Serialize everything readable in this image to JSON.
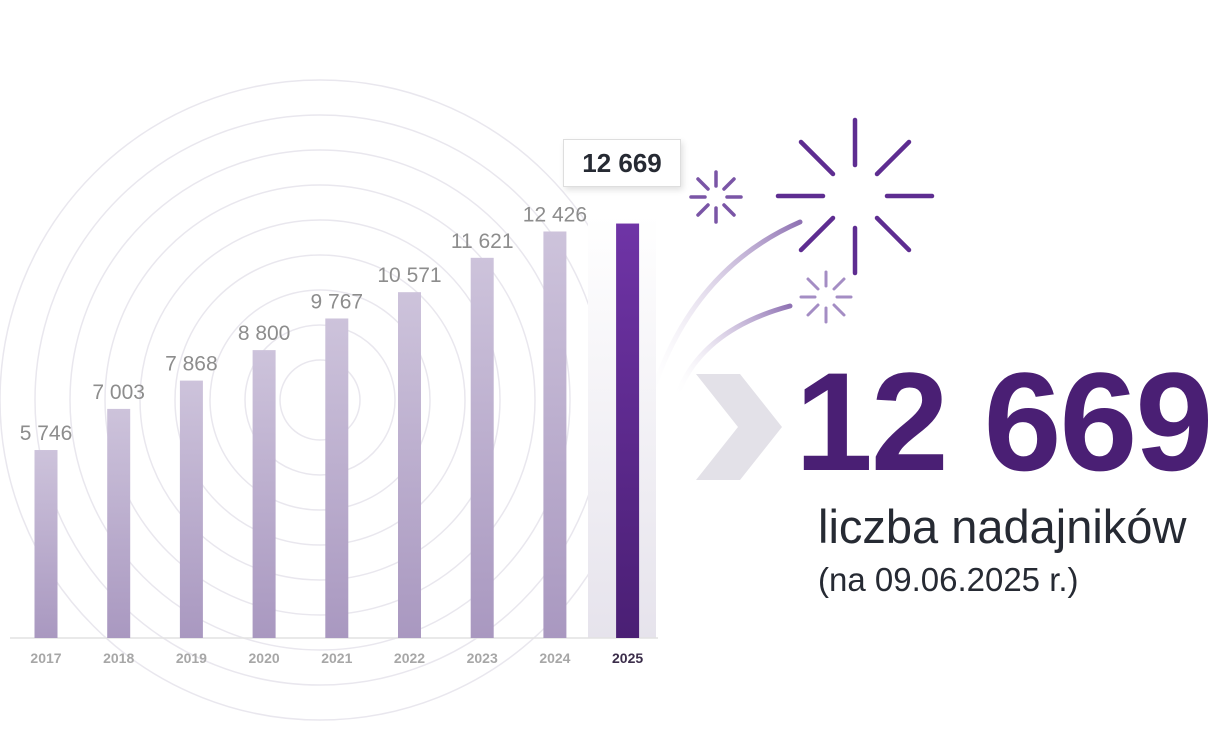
{
  "colors": {
    "bar_top": "#cdc3db",
    "bar_bottom": "#a998c0",
    "highlight_top": "#6f34a6",
    "highlight_bottom": "#4a1f74",
    "accent": "#4a1f74",
    "text_dark": "#262a33",
    "text_grey": "#8d8d8d",
    "chevron": "#e3e1e8"
  },
  "chart_data": {
    "type": "bar",
    "categories": [
      "2017",
      "2018",
      "2019",
      "2020",
      "2021",
      "2022",
      "2023",
      "2024",
      "2025"
    ],
    "values": [
      5746,
      7003,
      7868,
      8800,
      9767,
      10571,
      11621,
      12426,
      12669
    ],
    "value_labels": [
      "5 746",
      "7 003",
      "7 868",
      "8 800",
      "9 767",
      "10 571",
      "11 621",
      "12 426",
      ""
    ],
    "highlight_index": 8,
    "ylim": [
      0,
      14000
    ],
    "title": "",
    "xlabel": "",
    "ylabel": "",
    "grid": false
  },
  "callout": {
    "value": "12 669"
  },
  "hero": {
    "number": "12 669",
    "caption": "liczba nadajników",
    "date": "(na 09.06.2025 r.)"
  },
  "decor": {
    "chevron_icon": "chevron-right-icon",
    "firework_icon": "firework-icon"
  }
}
